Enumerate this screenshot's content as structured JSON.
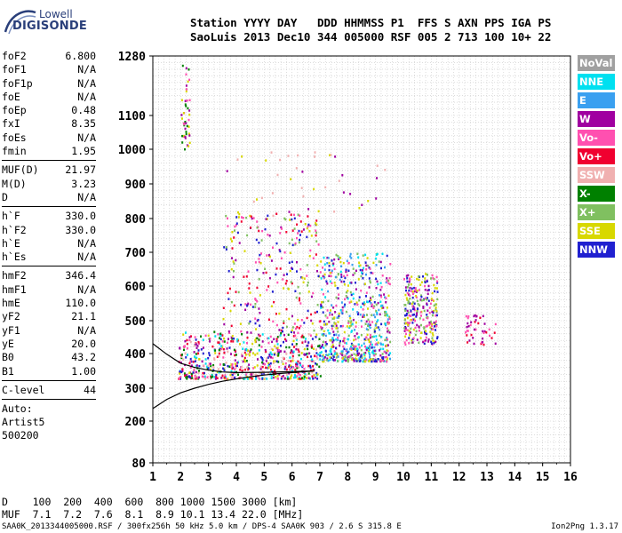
{
  "logo": {
    "line1": "Lowell",
    "line2": "DIGISONDE"
  },
  "header": {
    "line1": "Station YYYY DAY   DDD HHMMSS P1  FFS S AXN PPS IGA PS",
    "line2": "SaoLuis 2013 Dec10 344 005000 RSF 005 2 713 100 10+ 22"
  },
  "params": {
    "group1": [
      {
        "k": "foF2",
        "v": "6.800"
      },
      {
        "k": "foF1",
        "v": "N/A"
      },
      {
        "k": "foF1p",
        "v": "N/A"
      },
      {
        "k": "foE",
        "v": "N/A"
      },
      {
        "k": "foEp",
        "v": "0.48"
      },
      {
        "k": "fxI",
        "v": "8.35"
      },
      {
        "k": "foEs",
        "v": "N/A"
      },
      {
        "k": "fmin",
        "v": "1.95"
      }
    ],
    "group2": [
      {
        "k": "MUF(D)",
        "v": "21.97"
      },
      {
        "k": "M(D)",
        "v": "3.23"
      },
      {
        "k": "D",
        "v": "N/A"
      }
    ],
    "group3": [
      {
        "k": "h`F",
        "v": "330.0"
      },
      {
        "k": "h`F2",
        "v": "330.0"
      },
      {
        "k": "h`E",
        "v": "N/A"
      },
      {
        "k": "h`Es",
        "v": "N/A"
      }
    ],
    "group4": [
      {
        "k": "hmF2",
        "v": "346.4"
      },
      {
        "k": "hmF1",
        "v": "N/A"
      },
      {
        "k": "hmE",
        "v": "110.0"
      },
      {
        "k": "yF2",
        "v": "21.1"
      },
      {
        "k": "yF1",
        "v": "N/A"
      },
      {
        "k": "yE",
        "v": "20.0"
      },
      {
        "k": "B0",
        "v": "43.2"
      },
      {
        "k": "B1",
        "v": "1.00"
      }
    ],
    "clevel": {
      "k": "C-level",
      "v": "44"
    },
    "auto": [
      "Auto:",
      "Artist5",
      "500200"
    ]
  },
  "legend": [
    {
      "label": "NoVal",
      "color": "#a0a0a0"
    },
    {
      "label": "NNE",
      "color": "#00e0f0"
    },
    {
      "label": "E",
      "color": "#3aa0f0"
    },
    {
      "label": "W",
      "color": "#a000a0"
    },
    {
      "label": "Vo-",
      "color": "#ff50b0"
    },
    {
      "label": "Vo+",
      "color": "#f00030"
    },
    {
      "label": "SSW",
      "color": "#f0b0b0"
    },
    {
      "label": "X-",
      "color": "#008000"
    },
    {
      "label": "X+",
      "color": "#80c060"
    },
    {
      "label": "SSE",
      "color": "#d8d800"
    },
    {
      "label": "NNW",
      "color": "#2020d0"
    }
  ],
  "footer": {
    "dline": "D    100  200  400  600  800 1000 1500 3000 [km]",
    "mufline": "MUF  7.1  7.2  7.6  8.1  8.9 10.1 13.4 22.0 [MHz]",
    "fileline": "SAA0K_2013344005000.RSF / 300fx256h 50 kHz 5.0 km / DPS-4 SAA0K 903 / 2.6 S 315.8 E",
    "version": "Ion2Png 1.3.17"
  },
  "chart_data": {
    "type": "scatter",
    "xlim": [
      1,
      16
    ],
    "ylim": [
      80,
      1280
    ],
    "x_ticks": [
      1,
      2,
      3,
      4,
      5,
      6,
      7,
      8,
      9,
      10,
      11,
      12,
      13,
      14,
      15,
      16
    ],
    "y_ticks": [
      80,
      200,
      300,
      400,
      500,
      600,
      700,
      800,
      900,
      1000,
      1100,
      1280
    ],
    "grid": true,
    "clusters": [
      {
        "x": [
          1.9,
          7.0
        ],
        "y": [
          330,
          470
        ],
        "density": "high",
        "colors": [
          "#f00030",
          "#ff50b0",
          "#a000a0",
          "#2020d0",
          "#d8d800",
          "#00e0f0",
          "#008000",
          "#f0b0b0"
        ]
      },
      {
        "x": [
          3.5,
          7.0
        ],
        "y": [
          470,
          820
        ],
        "density": "medium",
        "colors": [
          "#ff50b0",
          "#a000a0",
          "#d8d800",
          "#f00030",
          "#80c060",
          "#2020d0"
        ]
      },
      {
        "x": [
          7.0,
          9.5
        ],
        "y": [
          380,
          700
        ],
        "density": "high",
        "colors": [
          "#3aa0f0",
          "#00e0f0",
          "#2020d0",
          "#d8d800",
          "#a000a0",
          "#ff50b0",
          "#80c060"
        ]
      },
      {
        "x": [
          10.0,
          11.2
        ],
        "y": [
          430,
          640
        ],
        "density": "medium",
        "colors": [
          "#d8d800",
          "#80c060",
          "#a000a0",
          "#ff50b0",
          "#2020d0"
        ]
      },
      {
        "x": [
          12.2,
          13.3
        ],
        "y": [
          430,
          520
        ],
        "density": "low",
        "colors": [
          "#a000a0",
          "#ff50b0",
          "#f00030"
        ]
      },
      {
        "x": [
          2.0,
          2.3
        ],
        "y": [
          1000,
          1260
        ],
        "density": "low",
        "colors": [
          "#d8d800",
          "#a000a0",
          "#ff50b0",
          "#008000"
        ]
      },
      {
        "x": [
          3.5,
          9.5
        ],
        "y": [
          780,
          1000
        ],
        "density": "low",
        "colors": [
          "#d8d800",
          "#a000a0",
          "#f0b0b0"
        ]
      }
    ],
    "traces": [
      {
        "name": "o-trace",
        "x": [
          1.0,
          1.5,
          2.0,
          2.5,
          3.0,
          3.5,
          4.0,
          4.5,
          5.0,
          5.5,
          6.0,
          6.5,
          6.8
        ],
        "y": [
          238,
          266,
          286,
          300,
          311,
          320,
          327,
          333,
          338,
          342,
          345,
          348,
          350
        ]
      },
      {
        "name": "x-trace",
        "x": [
          1.0,
          1.5,
          2.0,
          2.5,
          3.0,
          3.5,
          4.0,
          5.0,
          6.0,
          6.8
        ],
        "y": [
          430,
          398,
          372,
          360,
          352,
          347,
          345,
          346,
          348,
          350
        ]
      }
    ]
  }
}
